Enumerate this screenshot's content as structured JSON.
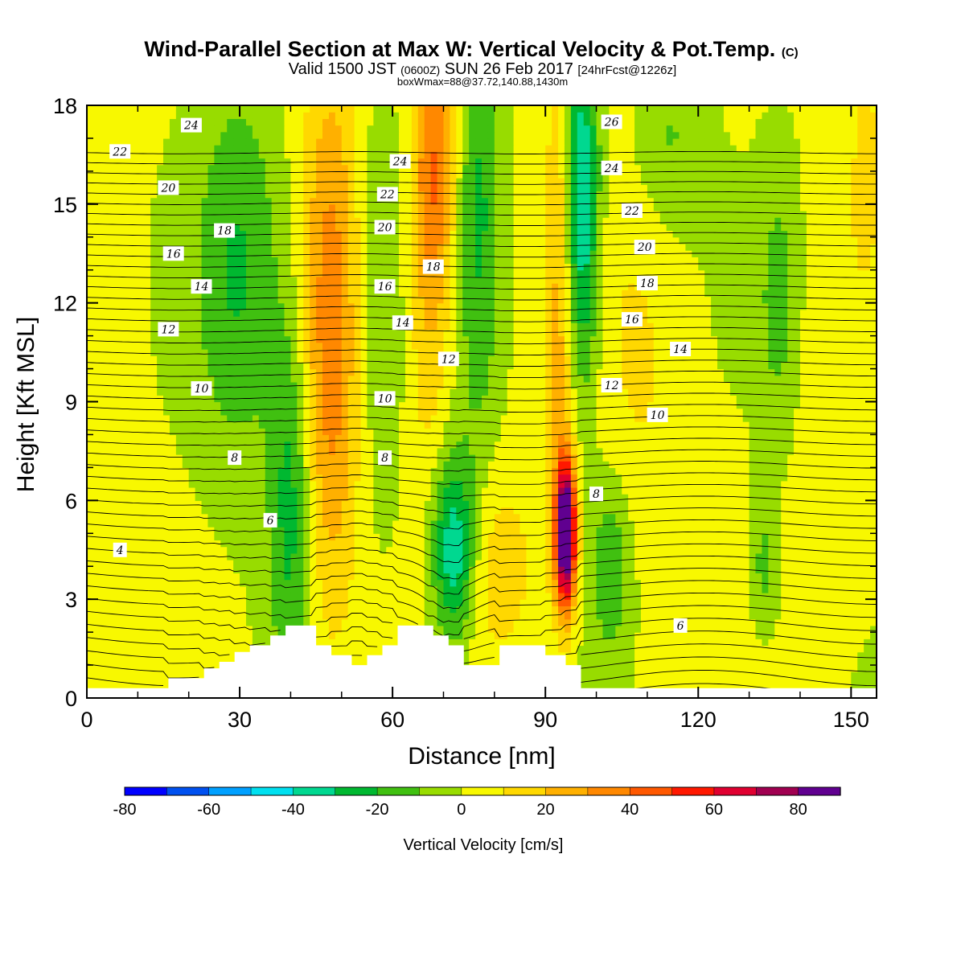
{
  "chart_data": {
    "type": "heatmap",
    "title": "Wind-Parallel Section at Max W: Vertical Velocity & Pot.Temp.",
    "title_mark": "(C)",
    "subtitle": {
      "valid": "Valid 1500 JST",
      "utc": "(0600Z)",
      "date": "SUN 26 Feb 2017",
      "forecast": "[24hrFcst@1226z]"
    },
    "box_info": "boxWmax=88@37.72,140.88,1430m",
    "xlabel": "Distance [nm]",
    "ylabel": "Height [Kft MSL]",
    "xlim": [
      0,
      155
    ],
    "ylim": [
      0,
      18
    ],
    "x_ticks": [
      0,
      30,
      60,
      90,
      120,
      150
    ],
    "y_ticks": [
      0,
      3,
      6,
      9,
      12,
      15,
      18
    ],
    "colorbar": {
      "label": "Vertical Velocity [cm/s]",
      "min": -80,
      "max": 90,
      "step": 10,
      "tick_labels": [
        "-80",
        "-60",
        "-40",
        "-20",
        "0",
        "20",
        "40",
        "60",
        "80"
      ],
      "colors": [
        "#0000ff",
        "#0050f0",
        "#00a0ff",
        "#00e0f0",
        "#00d890",
        "#00b830",
        "#40c010",
        "#98dc00",
        "#f8f800",
        "#ffd800",
        "#ffb000",
        "#ff8800",
        "#ff5800",
        "#ff1800",
        "#e00030",
        "#a00050",
        "#600090"
      ]
    },
    "terrain_kft": [
      [
        0,
        0.3
      ],
      [
        16,
        0.3
      ],
      [
        16,
        0.6
      ],
      [
        23,
        0.6
      ],
      [
        23,
        0.9
      ],
      [
        26,
        0.9
      ],
      [
        26,
        1.1
      ],
      [
        29,
        1.1
      ],
      [
        29,
        1.4
      ],
      [
        32,
        1.4
      ],
      [
        32,
        1.6
      ],
      [
        36,
        1.6
      ],
      [
        36,
        1.9
      ],
      [
        39,
        1.9
      ],
      [
        39,
        2.2
      ],
      [
        45,
        2.2
      ],
      [
        45,
        1.6
      ],
      [
        48,
        1.6
      ],
      [
        48,
        1.3
      ],
      [
        52,
        1.3
      ],
      [
        52,
        1.0
      ],
      [
        55,
        1.0
      ],
      [
        55,
        1.3
      ],
      [
        58,
        1.3
      ],
      [
        58,
        1.6
      ],
      [
        61,
        1.6
      ],
      [
        61,
        2.2
      ],
      [
        68,
        2.2
      ],
      [
        68,
        1.9
      ],
      [
        71,
        1.9
      ],
      [
        71,
        1.6
      ],
      [
        74,
        1.6
      ],
      [
        74,
        1.0
      ],
      [
        81,
        1.0
      ],
      [
        81,
        1.6
      ],
      [
        90,
        1.6
      ],
      [
        90,
        1.3
      ],
      [
        94,
        1.3
      ],
      [
        94,
        1.0
      ],
      [
        97,
        1.0
      ],
      [
        97,
        0.3
      ],
      [
        155,
        0.3
      ]
    ],
    "wind_features": [
      {
        "x": 3,
        "y": 10,
        "sx": 5,
        "sy": 8,
        "w": 7
      },
      {
        "x": 30,
        "y": 13,
        "sx": 6,
        "sy": 4,
        "w": -24
      },
      {
        "x": 40,
        "y": 6,
        "sx": 3,
        "sy": 4,
        "w": -26
      },
      {
        "x": 48,
        "y": 11,
        "sx": 4,
        "sy": 6,
        "w": 34
      },
      {
        "x": 57,
        "y": 12,
        "sx": 4,
        "sy": 5,
        "w": -10
      },
      {
        "x": 68,
        "y": 16,
        "sx": 3,
        "sy": 3,
        "w": 40
      },
      {
        "x": 67,
        "y": 10,
        "sx": 3,
        "sy": 3,
        "w": 12
      },
      {
        "x": 72,
        "y": 4.5,
        "sx": 3,
        "sy": 2,
        "w": -42
      },
      {
        "x": 77,
        "y": 15,
        "sx": 3,
        "sy": 5,
        "w": -22
      },
      {
        "x": 81,
        "y": 4,
        "sx": 5,
        "sy": 2,
        "w": 14
      },
      {
        "x": 94,
        "y": 5,
        "sx": 1.4,
        "sy": 1.5,
        "w": 105
      },
      {
        "x": 93,
        "y": 12,
        "sx": 2,
        "sy": 6,
        "w": 24
      },
      {
        "x": 97,
        "y": 15,
        "sx": 2.5,
        "sy": 4,
        "w": -45
      },
      {
        "x": 103,
        "y": 4,
        "sx": 3,
        "sy": 2,
        "w": -20
      },
      {
        "x": 109,
        "y": 10,
        "sx": 6,
        "sy": 5,
        "w": 8
      },
      {
        "x": 114,
        "y": 17,
        "sx": 5,
        "sy": 2,
        "w": -14
      },
      {
        "x": 136,
        "y": 12,
        "sx": 3,
        "sy": 3,
        "w": -16
      },
      {
        "x": 133,
        "y": 4,
        "sx": 2,
        "sy": 1.5,
        "w": -16
      },
      {
        "x": 146,
        "y": 9,
        "sx": 6,
        "sy": 4,
        "w": 6
      },
      {
        "x": 153,
        "y": 17,
        "sx": 3,
        "sy": 3,
        "w": 8
      }
    ],
    "theta_levels": {
      "min": 3,
      "max": 27,
      "step": 0.5
    },
    "contour_labels": [
      {
        "text": "24",
        "x": 20.5,
        "y": 17.4
      },
      {
        "text": "22",
        "x": 6.5,
        "y": 16.6
      },
      {
        "text": "20",
        "x": 16,
        "y": 15.5
      },
      {
        "text": "18",
        "x": 27,
        "y": 14.2
      },
      {
        "text": "16",
        "x": 17,
        "y": 13.5
      },
      {
        "text": "14",
        "x": 22.5,
        "y": 12.5
      },
      {
        "text": "12",
        "x": 16,
        "y": 11.2
      },
      {
        "text": "10",
        "x": 22.5,
        "y": 9.4
      },
      {
        "text": "8",
        "x": 29,
        "y": 7.3
      },
      {
        "text": "6",
        "x": 36,
        "y": 5.4
      },
      {
        "text": "4",
        "x": 6.5,
        "y": 4.5
      },
      {
        "text": "24",
        "x": 61.5,
        "y": 16.3
      },
      {
        "text": "22",
        "x": 59,
        "y": 15.3
      },
      {
        "text": "20",
        "x": 58.5,
        "y": 14.3
      },
      {
        "text": "18",
        "x": 68,
        "y": 13.1
      },
      {
        "text": "16",
        "x": 58.5,
        "y": 12.5
      },
      {
        "text": "14",
        "x": 62,
        "y": 11.4
      },
      {
        "text": "12",
        "x": 71,
        "y": 10.3
      },
      {
        "text": "10",
        "x": 58.5,
        "y": 9.1
      },
      {
        "text": "8",
        "x": 58.5,
        "y": 7.3
      },
      {
        "text": "26",
        "x": 103,
        "y": 17.5
      },
      {
        "text": "24",
        "x": 103,
        "y": 16.1
      },
      {
        "text": "22",
        "x": 107,
        "y": 14.8
      },
      {
        "text": "20",
        "x": 109.5,
        "y": 13.7
      },
      {
        "text": "18",
        "x": 110,
        "y": 12.6
      },
      {
        "text": "16",
        "x": 107,
        "y": 11.5
      },
      {
        "text": "14",
        "x": 116.5,
        "y": 10.6
      },
      {
        "text": "12",
        "x": 103,
        "y": 9.5
      },
      {
        "text": "10",
        "x": 112,
        "y": 8.6
      },
      {
        "text": "8",
        "x": 100,
        "y": 6.2
      },
      {
        "text": "6",
        "x": 116.5,
        "y": 2.2
      }
    ]
  }
}
